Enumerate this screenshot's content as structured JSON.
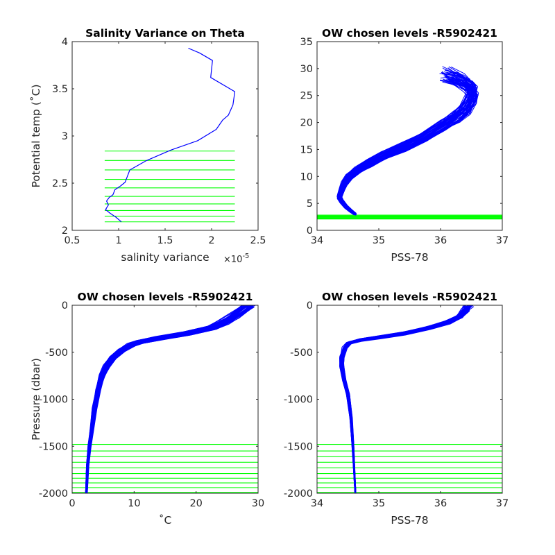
{
  "figure_title": "",
  "chart_data": [
    {
      "id": "p1",
      "type": "line",
      "title": "Salinity Variance on Theta",
      "xlabel": "salinity variance",
      "x_exponent_label": "×10",
      "x_exponent_power": "-5",
      "ylabel": "Potential temp (˚C)",
      "xlim": [
        0.5,
        2.5
      ],
      "ylim": [
        2,
        4
      ],
      "xticks": [
        0.5,
        1,
        1.5,
        2,
        2.5
      ],
      "xtick_labels": [
        "0.5",
        "1",
        "1.5",
        "2",
        "2.5"
      ],
      "yticks": [
        2,
        2.5,
        3,
        3.5,
        4
      ],
      "ytick_labels": [
        "2",
        "2.5",
        "3",
        "3.5",
        "4"
      ],
      "series": [
        {
          "color": "#0000ff",
          "x": [
            1.03,
            0.97,
            0.91,
            0.86,
            0.89,
            0.87,
            0.9,
            0.93,
            0.94,
            0.96,
            1.02,
            1.07,
            1.12,
            1.3,
            1.56,
            1.85,
            2.05,
            2.12,
            2.18,
            2.23,
            2.25,
            1.99,
            2.01,
            1.87,
            1.75
          ],
          "y": [
            2.09,
            2.14,
            2.18,
            2.22,
            2.27,
            2.31,
            2.35,
            2.37,
            2.38,
            2.43,
            2.47,
            2.51,
            2.64,
            2.74,
            2.85,
            2.95,
            3.07,
            3.17,
            3.22,
            3.33,
            3.47,
            3.62,
            3.8,
            3.88,
            3.93
          ]
        }
      ],
      "hlines": {
        "color": "#00ff00",
        "x_range": [
          0.85,
          2.25
        ],
        "y": [
          2.09,
          2.15,
          2.21,
          2.28,
          2.36,
          2.45,
          2.54,
          2.64,
          2.74,
          2.84
        ]
      }
    },
    {
      "id": "p2",
      "type": "line",
      "title": "OW chosen levels -R5902421",
      "xlabel": "PSS-78",
      "ylabel": "",
      "xlim": [
        34,
        37
      ],
      "ylim": [
        0,
        35
      ],
      "xticks": [
        34,
        35,
        36,
        37
      ],
      "xtick_labels": [
        "34",
        "35",
        "36",
        "37"
      ],
      "yticks": [
        0,
        5,
        10,
        15,
        20,
        25,
        30,
        35
      ],
      "ytick_labels": [
        "0",
        "5",
        "10",
        "15",
        "20",
        "25",
        "30",
        "35"
      ],
      "profile_count": 60,
      "series": [
        {
          "color": "#0000ff",
          "x": [
            34.62,
            34.55,
            34.47,
            34.4,
            34.36,
            34.4,
            34.44,
            34.52,
            34.65,
            34.85,
            35.1,
            35.4,
            35.75,
            36.05,
            36.25,
            36.4,
            36.5,
            36.52,
            36.45,
            36.3,
            36.1
          ],
          "y": [
            3.0,
            3.6,
            4.4,
            5.4,
            6.2,
            7.5,
            8.7,
            10.0,
            11.2,
            12.5,
            14.0,
            15.5,
            17.5,
            19.5,
            21.0,
            22.5,
            24.5,
            26.0,
            27.0,
            28.0,
            28.8
          ]
        }
      ],
      "hlines": {
        "color": "#00ff00",
        "x_range": [
          34,
          37
        ],
        "y": [
          2.09,
          2.15,
          2.21,
          2.28,
          2.36,
          2.45,
          2.54,
          2.64,
          2.74,
          2.84
        ]
      }
    },
    {
      "id": "p3",
      "type": "line",
      "title": "OW chosen levels -R5902421",
      "xlabel": "˚C",
      "ylabel": "Pressure (dbar)",
      "xlim": [
        0,
        30
      ],
      "ylim": [
        -2000,
        0
      ],
      "xticks": [
        0,
        10,
        20,
        30
      ],
      "xtick_labels": [
        "0",
        "10",
        "20",
        "30"
      ],
      "yticks": [
        -2000,
        -1500,
        -1000,
        -500,
        0
      ],
      "ytick_labels": [
        "-2000",
        "-1500",
        "-1000",
        "-500",
        "0"
      ],
      "profile_count": 60,
      "series": [
        {
          "color": "#0000ff",
          "x": [
            28.5,
            27.5,
            26.0,
            24.5,
            22.5,
            18.5,
            14.0,
            11.0,
            9.5,
            8.0,
            6.5,
            5.5,
            4.8,
            4.2,
            3.6,
            3.2,
            2.8,
            2.5,
            2.3
          ],
          "y": [
            0,
            -50,
            -120,
            -180,
            -240,
            -300,
            -350,
            -390,
            -420,
            -480,
            -560,
            -650,
            -750,
            -900,
            -1100,
            -1300,
            -1500,
            -1700,
            -2000
          ]
        }
      ],
      "hlines": {
        "color": "#00ff00",
        "x_range": [
          0,
          30
        ],
        "y": [
          -1480,
          -1550,
          -1610,
          -1670,
          -1730,
          -1790,
          -1840,
          -1890,
          -1940,
          -1990
        ]
      }
    },
    {
      "id": "p4",
      "type": "line",
      "title": "OW chosen levels -R5902421",
      "xlabel": "PSS-78",
      "ylabel": "",
      "xlim": [
        34,
        37
      ],
      "ylim": [
        -2000,
        0
      ],
      "xticks": [
        34,
        35,
        36,
        37
      ],
      "xtick_labels": [
        "34",
        "35",
        "36",
        "37"
      ],
      "yticks": [
        -2000,
        -1500,
        -1000,
        -500,
        0
      ],
      "ytick_labels": [
        "-2000",
        "-1500",
        "-1000",
        "-500",
        "0"
      ],
      "profile_count": 60,
      "series": [
        {
          "color": "#0000ff",
          "x": [
            36.45,
            36.4,
            36.3,
            36.1,
            35.8,
            35.4,
            35.0,
            34.7,
            34.52,
            34.45,
            34.4,
            34.4,
            34.44,
            34.5,
            34.55,
            34.58,
            34.6,
            34.62
          ],
          "y": [
            0,
            -50,
            -120,
            -180,
            -240,
            -300,
            -340,
            -370,
            -400,
            -450,
            -550,
            -650,
            -800,
            -950,
            -1200,
            -1500,
            -1750,
            -2000
          ]
        }
      ],
      "hlines": {
        "color": "#00ff00",
        "x_range": [
          34,
          37
        ],
        "y": [
          -1480,
          -1550,
          -1610,
          -1670,
          -1730,
          -1790,
          -1840,
          -1890,
          -1940,
          -1990
        ]
      }
    }
  ]
}
